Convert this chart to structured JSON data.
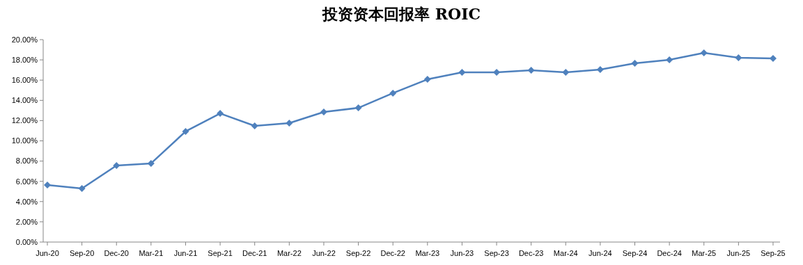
{
  "chart_data": {
    "type": "line",
    "title": "投资资本回报率 ROIC",
    "categories": [
      "Jun-20",
      "Sep-20",
      "Dec-20",
      "Mar-21",
      "Jun-21",
      "Sep-21",
      "Dec-21",
      "Mar-22",
      "Jun-22",
      "Sep-22",
      "Dec-22",
      "Mar-23",
      "Jun-23",
      "Sep-23",
      "Dec-23",
      "Mar-24",
      "Jun-24",
      "Sep-24",
      "Dec-24",
      "Mar-25",
      "Jun-25",
      "Sep-25"
    ],
    "series": [
      {
        "color": "#4f81bd",
        "values": [
          5.64,
          5.29,
          7.56,
          7.77,
          10.93,
          12.71,
          11.48,
          11.75,
          12.85,
          13.26,
          14.71,
          16.08,
          16.77,
          16.77,
          16.98,
          16.77,
          17.04,
          17.66,
          18.0,
          18.69,
          18.21,
          18.14
        ]
      }
    ],
    "ylim": [
      0,
      20
    ],
    "yticks": [
      {
        "value": 0,
        "label": "0.00%"
      },
      {
        "value": 2,
        "label": "2.00%"
      },
      {
        "value": 4,
        "label": "4.00%"
      },
      {
        "value": 6,
        "label": "6.00%"
      },
      {
        "value": 8,
        "label": "8.00%"
      },
      {
        "value": 10,
        "label": "10.00%"
      },
      {
        "value": 12,
        "label": "12.00%"
      },
      {
        "value": 14,
        "label": "14.00%"
      },
      {
        "value": 16,
        "label": "16.00%"
      },
      {
        "value": 18,
        "label": "18.00%"
      },
      {
        "value": 20,
        "label": "20.00%"
      }
    ],
    "marker": "diamond",
    "line_style": "solid",
    "grid": false
  }
}
